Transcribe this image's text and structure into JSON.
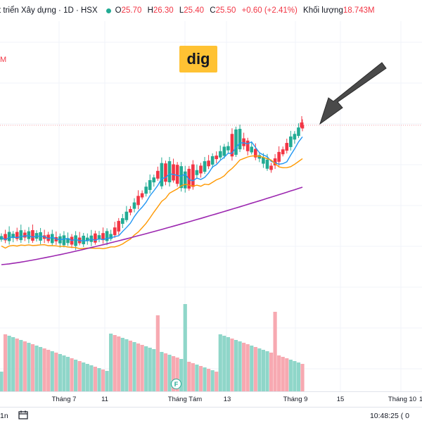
{
  "header": {
    "title": "t triển Xây dựng · 1D · HSX",
    "status_color": "#22ab94",
    "open_label": "O",
    "open_value": "25.70",
    "high_label": "H",
    "high_value": "26.30",
    "low_label": "L",
    "low_value": "25.40",
    "close_label": "C",
    "close_value": "25.50",
    "change": "+0.60 (+2.41%)",
    "volume_label": "Khối lượng",
    "volume_value": "18.743M"
  },
  "side_label": "M",
  "ticker_label": "dig",
  "colors": {
    "up": "#22ab94",
    "down": "#f23645",
    "up_volume": "#8fd6c9",
    "down_volume": "#f7a9b1",
    "ma_fast": "#2196f3",
    "ma_mid": "#ff9800",
    "ma_slow": "#9c27b0",
    "ticker_bg": "#ffc233"
  },
  "x_axis": {
    "ticks": [
      {
        "label": "Tháng 7"
      },
      {
        "label": "11"
      },
      {
        "label": "Tháng Tám"
      },
      {
        "label": "13"
      },
      {
        "label": "Tháng 9"
      },
      {
        "label": "15"
      },
      {
        "label": "Tháng 10"
      },
      {
        "label": "1"
      }
    ]
  },
  "event_badge": "F",
  "bottom": {
    "range": "1n",
    "calendar_icon": "calendar-icon",
    "clock": "10:48:25 ( 0"
  },
  "chart_data": {
    "type": "candlestick",
    "title": "",
    "last_candle": {
      "open": 25.7,
      "high": 26.3,
      "low": 25.4,
      "close": 25.5
    },
    "candles": [
      {
        "dir": "up"
      },
      {
        "dir": "down"
      },
      {
        "dir": "up"
      },
      {
        "dir": "up"
      },
      {
        "dir": "down"
      },
      {
        "dir": "up"
      },
      {
        "dir": "down"
      },
      {
        "dir": "up"
      },
      {
        "dir": "down"
      },
      {
        "dir": "up"
      },
      {
        "dir": "up"
      },
      {
        "dir": "down"
      },
      {
        "dir": "down"
      },
      {
        "dir": "up"
      },
      {
        "dir": "down"
      },
      {
        "dir": "up"
      },
      {
        "dir": "up"
      },
      {
        "dir": "up"
      },
      {
        "dir": "down"
      },
      {
        "dir": "up"
      },
      {
        "dir": "down"
      },
      {
        "dir": "up"
      },
      {
        "dir": "up"
      },
      {
        "dir": "up"
      },
      {
        "dir": "down"
      },
      {
        "dir": "up"
      },
      {
        "dir": "down"
      },
      {
        "dir": "up"
      },
      {
        "dir": "up"
      },
      {
        "dir": "down"
      },
      {
        "dir": "down"
      },
      {
        "dir": "up"
      },
      {
        "dir": "up"
      },
      {
        "dir": "down"
      },
      {
        "dir": "up"
      },
      {
        "dir": "down"
      },
      {
        "dir": "down"
      },
      {
        "dir": "up"
      },
      {
        "dir": "up"
      },
      {
        "dir": "up"
      },
      {
        "dir": "down"
      },
      {
        "dir": "up"
      },
      {
        "dir": "down"
      },
      {
        "dir": "up"
      },
      {
        "dir": "down"
      },
      {
        "dir": "down"
      },
      {
        "dir": "up"
      },
      {
        "dir": "up"
      },
      {
        "dir": "down"
      },
      {
        "dir": "down"
      },
      {
        "dir": "up"
      },
      {
        "dir": "down"
      },
      {
        "dir": "up"
      },
      {
        "dir": "down"
      },
      {
        "dir": "up"
      },
      {
        "dir": "down"
      },
      {
        "dir": "up"
      },
      {
        "dir": "up"
      },
      {
        "dir": "up"
      },
      {
        "dir": "down"
      },
      {
        "dir": "up"
      },
      {
        "dir": "up"
      },
      {
        "dir": "down"
      },
      {
        "dir": "down"
      },
      {
        "dir": "up"
      },
      {
        "dir": "down"
      },
      {
        "dir": "up"
      },
      {
        "dir": "up"
      },
      {
        "dir": "up"
      },
      {
        "dir": "down"
      },
      {
        "dir": "down"
      },
      {
        "dir": "down"
      },
      {
        "dir": "down"
      },
      {
        "dir": "down"
      },
      {
        "dir": "up"
      },
      {
        "dir": "up"
      },
      {
        "dir": "up"
      },
      {
        "dir": "down"
      }
    ]
  }
}
